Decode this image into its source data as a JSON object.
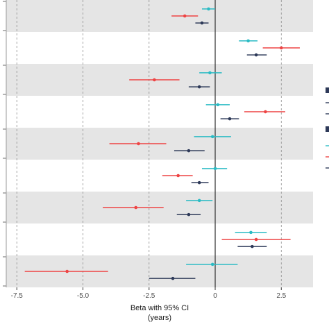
{
  "chart_data": {
    "type": "scatter",
    "subtype": "forest-plot",
    "xlabel": "Beta with 95% CI",
    "xlabel_unit": "(years)",
    "xlim": [
      -7.9,
      3.7
    ],
    "xticks": [
      -7.5,
      -5.0,
      -2.5,
      0,
      2.5
    ],
    "xtick_labels": [
      "-7.5",
      "-5.0",
      "-2.5",
      "0",
      "2.5"
    ],
    "reference_line": 0,
    "grid_vertical": "dashed",
    "band_colors": [
      "#e5e5e5",
      "#ffffff"
    ],
    "series_colors": {
      "teal": "#2bbbc4",
      "red": "#ee4444",
      "navy": "#2e3a59"
    },
    "groups": [
      {
        "points": [
          {
            "color": "teal",
            "estimate": -0.25,
            "lower": -0.5,
            "upper": 0.0
          },
          {
            "color": "red",
            "estimate": -1.15,
            "lower": -1.65,
            "upper": -0.65
          },
          {
            "color": "navy",
            "estimate": -0.5,
            "lower": -0.75,
            "upper": -0.25
          }
        ]
      },
      {
        "points": [
          {
            "color": "teal",
            "estimate": 1.25,
            "lower": 0.9,
            "upper": 1.6
          },
          {
            "color": "red",
            "estimate": 2.5,
            "lower": 1.8,
            "upper": 3.2
          },
          {
            "color": "navy",
            "estimate": 1.55,
            "lower": 1.2,
            "upper": 1.95
          }
        ]
      },
      {
        "points": [
          {
            "color": "teal",
            "estimate": -0.2,
            "lower": -0.6,
            "upper": 0.25
          },
          {
            "color": "red",
            "estimate": -2.3,
            "lower": -3.25,
            "upper": -1.35
          },
          {
            "color": "navy",
            "estimate": -0.6,
            "lower": -1.0,
            "upper": -0.2
          }
        ]
      },
      {
        "points": [
          {
            "color": "teal",
            "estimate": 0.1,
            "lower": -0.35,
            "upper": 0.55
          },
          {
            "color": "red",
            "estimate": 1.9,
            "lower": 1.1,
            "upper": 2.65
          },
          {
            "color": "navy",
            "estimate": 0.55,
            "lower": 0.2,
            "upper": 0.9
          }
        ]
      },
      {
        "points": [
          {
            "color": "teal",
            "estimate": -0.1,
            "lower": -0.8,
            "upper": 0.6
          },
          {
            "color": "red",
            "estimate": -2.9,
            "lower": -4.0,
            "upper": -1.85
          },
          {
            "color": "navy",
            "estimate": -1.0,
            "lower": -1.55,
            "upper": -0.4
          }
        ]
      },
      {
        "points": [
          {
            "color": "teal",
            "estimate": 0.0,
            "lower": -0.5,
            "upper": 0.45
          },
          {
            "color": "red",
            "estimate": -1.4,
            "lower": -2.0,
            "upper": -0.85
          },
          {
            "color": "navy",
            "estimate": -0.6,
            "lower": -0.9,
            "upper": -0.25
          }
        ]
      },
      {
        "points": [
          {
            "color": "teal",
            "estimate": -0.6,
            "lower": -1.1,
            "upper": -0.1
          },
          {
            "color": "red",
            "estimate": -3.0,
            "lower": -4.25,
            "upper": -1.95
          },
          {
            "color": "navy",
            "estimate": -1.0,
            "lower": -1.45,
            "upper": -0.55
          }
        ]
      },
      {
        "points": [
          {
            "color": "teal",
            "estimate": 1.35,
            "lower": 0.75,
            "upper": 1.95
          },
          {
            "color": "red",
            "estimate": 1.55,
            "lower": 0.25,
            "upper": 2.85
          },
          {
            "color": "navy",
            "estimate": 1.4,
            "lower": 0.85,
            "upper": 1.95
          }
        ]
      },
      {
        "points": [
          {
            "color": "teal",
            "estimate": -0.1,
            "lower": -1.1,
            "upper": 0.85
          },
          {
            "color": "red",
            "estimate": -5.6,
            "lower": -7.2,
            "upper": -4.05
          },
          {
            "color": "navy",
            "estimate": -1.6,
            "lower": -2.5,
            "upper": -0.75
          }
        ]
      }
    ]
  }
}
